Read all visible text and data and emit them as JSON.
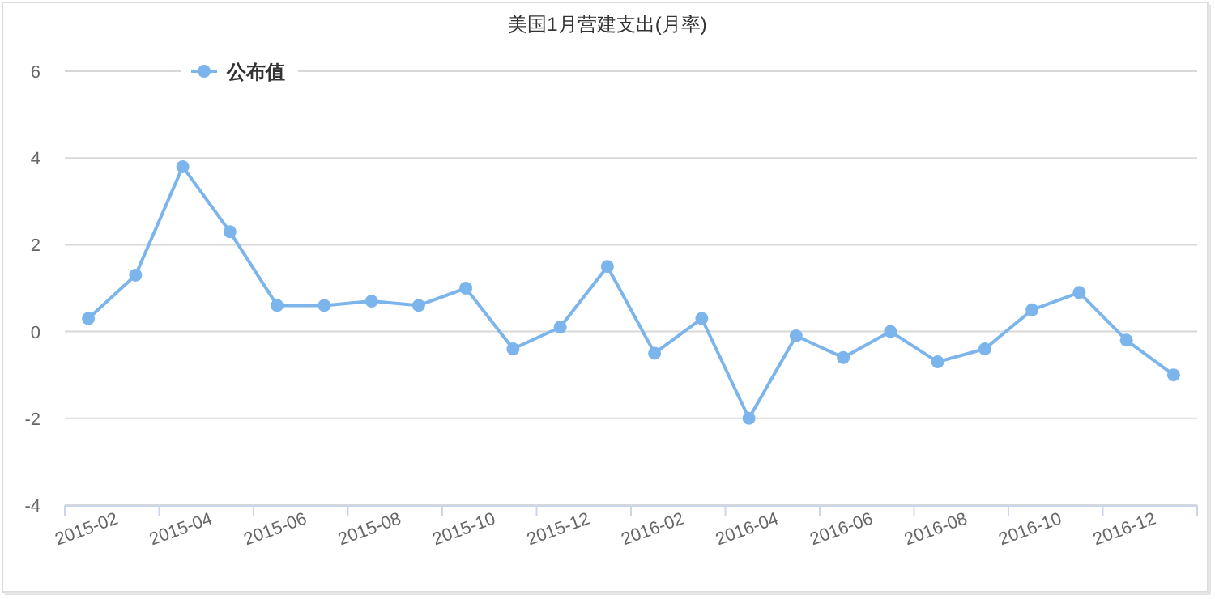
{
  "chart_data": {
    "type": "line",
    "title": "美国1月营建支出(月率)",
    "categories": [
      "2015-02",
      null,
      "2015-04",
      null,
      "2015-06",
      null,
      "2015-08",
      null,
      "2015-10",
      null,
      "2015-12",
      null,
      "2016-02",
      null,
      "2016-04",
      null,
      "2016-06",
      null,
      "2016-08",
      null,
      "2016-10",
      null,
      "2016-12",
      null
    ],
    "series": [
      {
        "name": "公布值",
        "color": "#7cb5ec",
        "values": [
          0.3,
          1.3,
          3.8,
          2.3,
          0.6,
          0.6,
          0.7,
          0.6,
          1.0,
          -0.4,
          0.1,
          1.5,
          -0.5,
          0.3,
          -2.0,
          -0.1,
          -0.6,
          0.0,
          -0.7,
          -0.4,
          0.5,
          0.9,
          -0.2,
          -1.0
        ]
      }
    ],
    "ylim": [
      -4,
      6
    ],
    "yticks": [
      -4,
      -2,
      0,
      2,
      4,
      6
    ],
    "grid": "y",
    "legend": "top left",
    "marker": "circle",
    "line_style": "solid"
  }
}
